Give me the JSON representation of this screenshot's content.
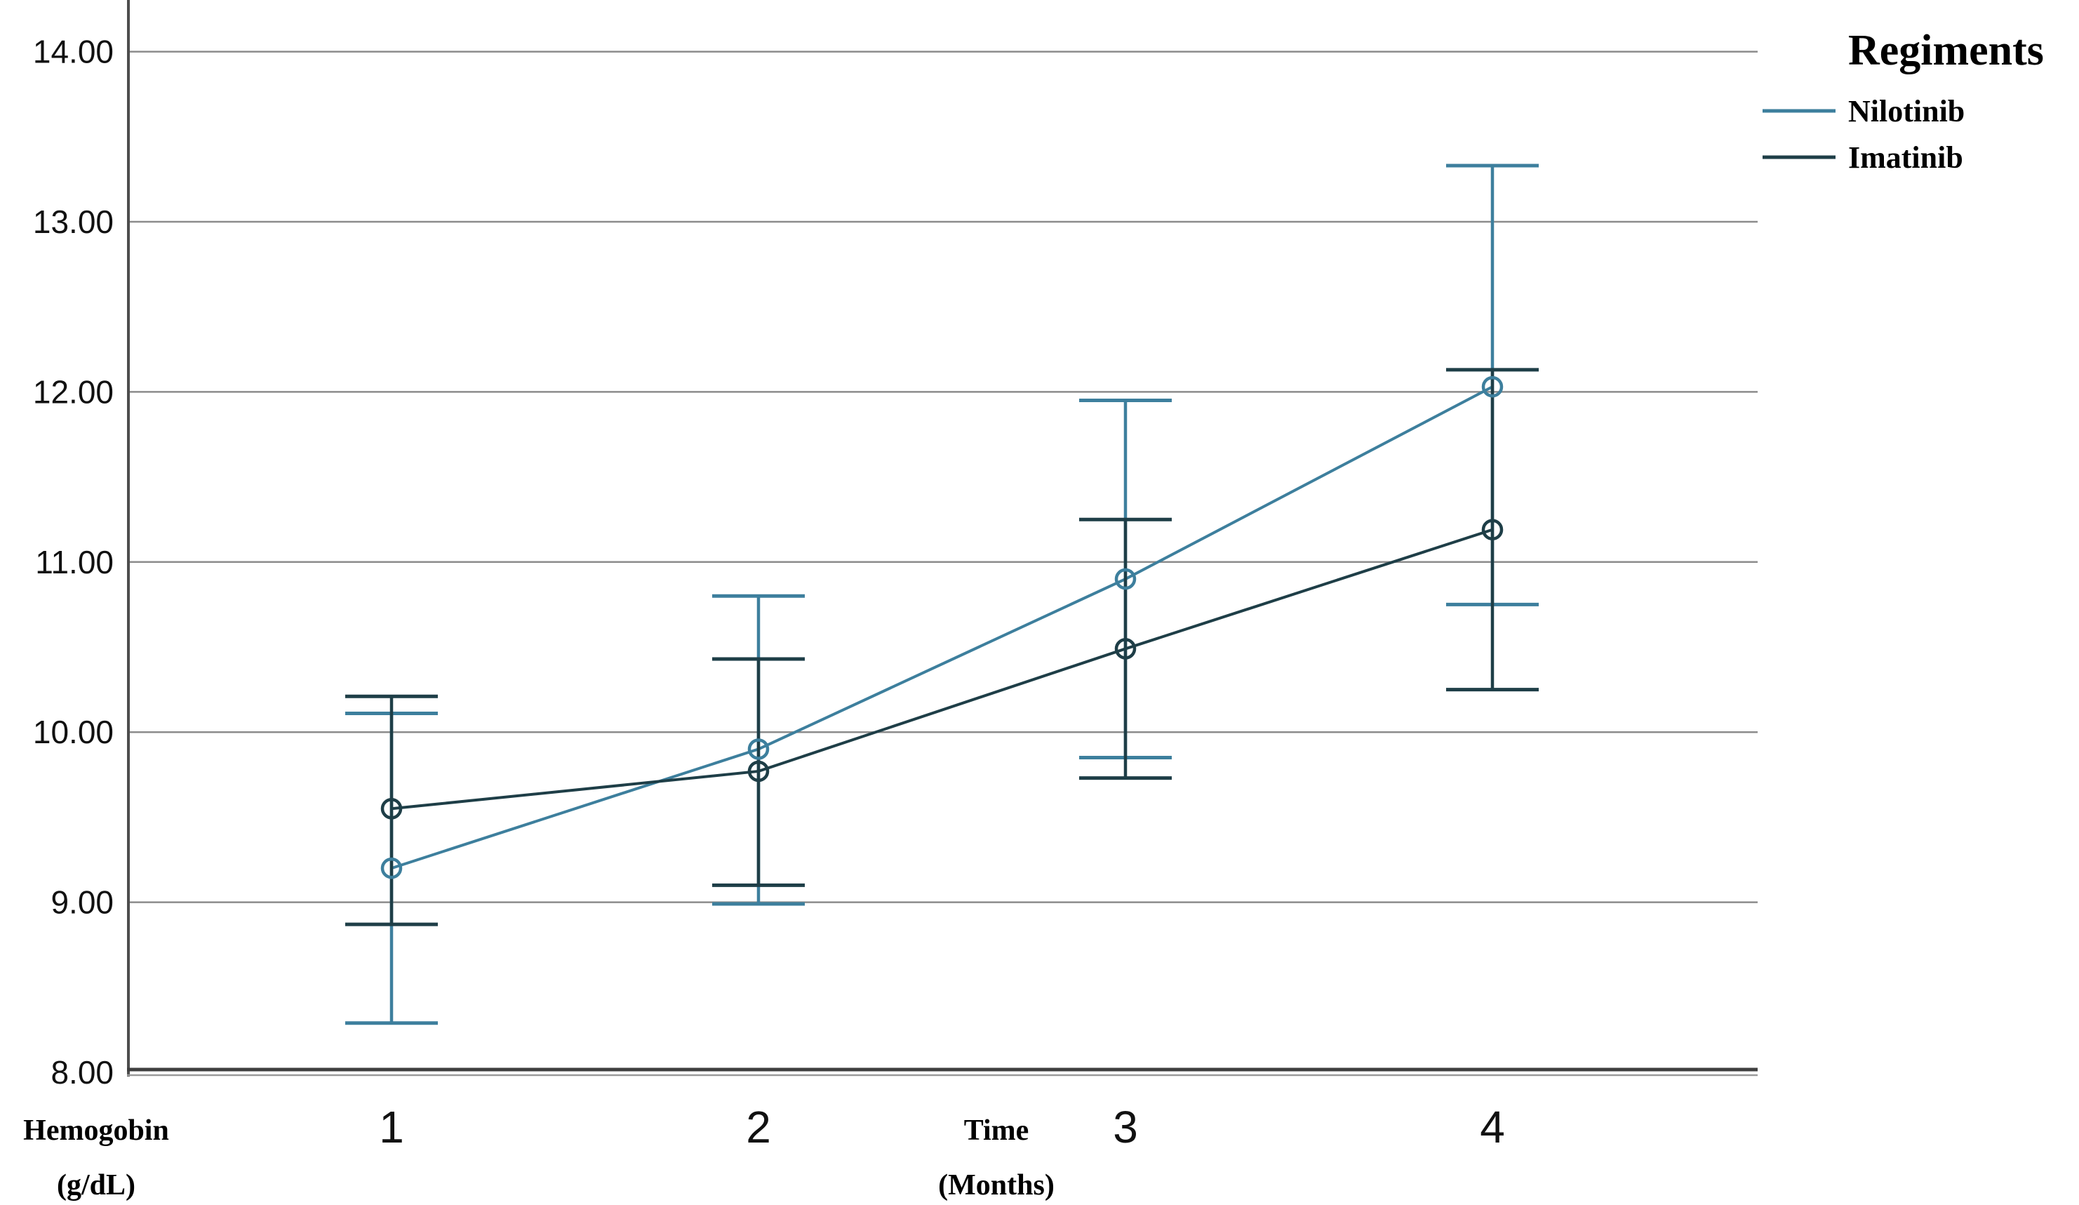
{
  "chart_data": {
    "type": "line",
    "subtype": "error-bar-line-chart",
    "title": "",
    "xlabel": "Time (Months)",
    "ylabel": "Hemogobin (g/dL)",
    "xlabel_lines": [
      "Time",
      "(Months)"
    ],
    "ylabel_lines": [
      "Hemogobin",
      "(g/dL)"
    ],
    "x": [
      1,
      2,
      3,
      4
    ],
    "xticks": [
      {
        "value": 1,
        "label": "1"
      },
      {
        "value": 2,
        "label": "2"
      },
      {
        "value": 3,
        "label": "3"
      },
      {
        "value": 4,
        "label": "4"
      }
    ],
    "yticks": [
      {
        "value": 8,
        "label": "8.00"
      },
      {
        "value": 9,
        "label": "9.00"
      },
      {
        "value": 10,
        "label": "10.00"
      },
      {
        "value": 11,
        "label": "11.00"
      },
      {
        "value": 12,
        "label": "12.00"
      },
      {
        "value": 13,
        "label": "13.00"
      },
      {
        "value": 14,
        "label": "14.00"
      }
    ],
    "ylim": [
      8,
      14.3
    ],
    "grid": "horizontal",
    "legend_position": "top-right",
    "legend": {
      "title": "Regiments",
      "items": [
        {
          "label": "Nilotinib"
        },
        {
          "label": "Imatinib"
        }
      ]
    },
    "series": [
      {
        "name": "Nilotinib",
        "color": "#3d7f9d",
        "marker": "open-circle",
        "means": [
          9.2,
          9.9,
          10.9,
          12.03
        ],
        "ci_lower": [
          8.29,
          8.99,
          9.85,
          10.75
        ],
        "ci_upper": [
          10.11,
          10.8,
          11.95,
          13.33
        ]
      },
      {
        "name": "Imatinib",
        "color": "#1e3e47",
        "marker": "open-circle",
        "means": [
          9.55,
          9.77,
          10.49,
          11.19
        ],
        "ci_lower": [
          8.87,
          9.1,
          9.73,
          10.25
        ],
        "ci_upper": [
          10.21,
          10.43,
          11.25,
          12.13
        ]
      }
    ]
  }
}
